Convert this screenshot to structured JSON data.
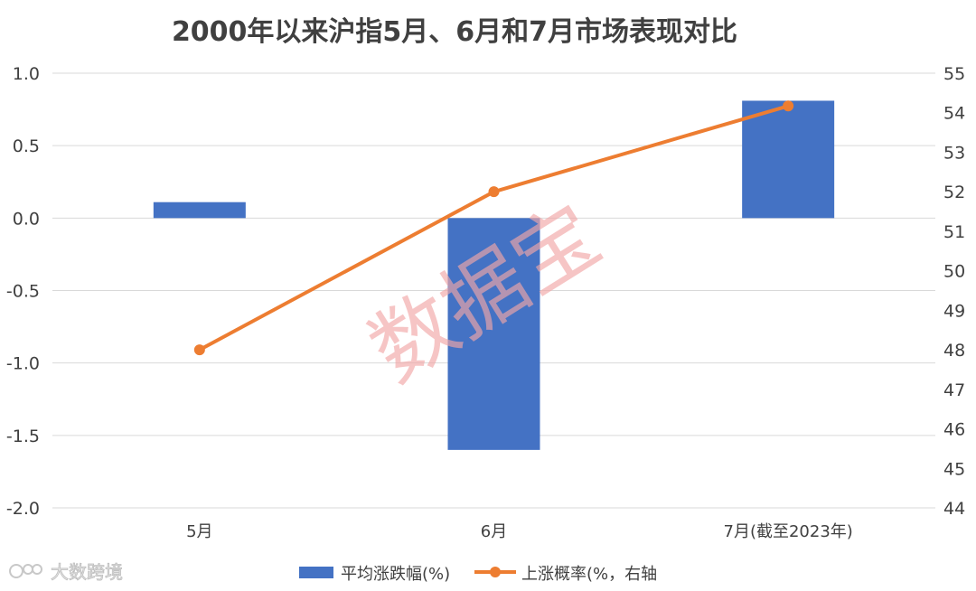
{
  "chart_data": {
    "type": "bar",
    "title": "2000年以来沪指5月、6月和7月市场表现对比",
    "categories": [
      "5月",
      "6月",
      "7月(截至2023年)"
    ],
    "series": [
      {
        "name": "平均涨跌幅(%)",
        "type": "bar",
        "axis": "left",
        "color": "#4472C4",
        "values": [
          0.11,
          -1.6,
          0.81
        ]
      },
      {
        "name": "上涨概率(%，右轴",
        "type": "line",
        "axis": "right",
        "color": "#ED7D31",
        "values": [
          48.0,
          52.0,
          54.17
        ]
      }
    ],
    "y_left": {
      "min": -2.0,
      "max": 1.0,
      "ticks": [
        "1.0",
        "0.5",
        "0.0",
        "-0.5",
        "-1.0",
        "-1.5",
        "-2.0"
      ]
    },
    "y_right": {
      "min": 44,
      "max": 55,
      "ticks": [
        "55",
        "54",
        "53",
        "52",
        "51",
        "50",
        "49",
        "48",
        "47",
        "46",
        "45",
        "44"
      ]
    },
    "grid": true,
    "legend_position": "bottom"
  },
  "watermark": {
    "text": "数据宝"
  },
  "brand": {
    "text": "大数跨境"
  }
}
